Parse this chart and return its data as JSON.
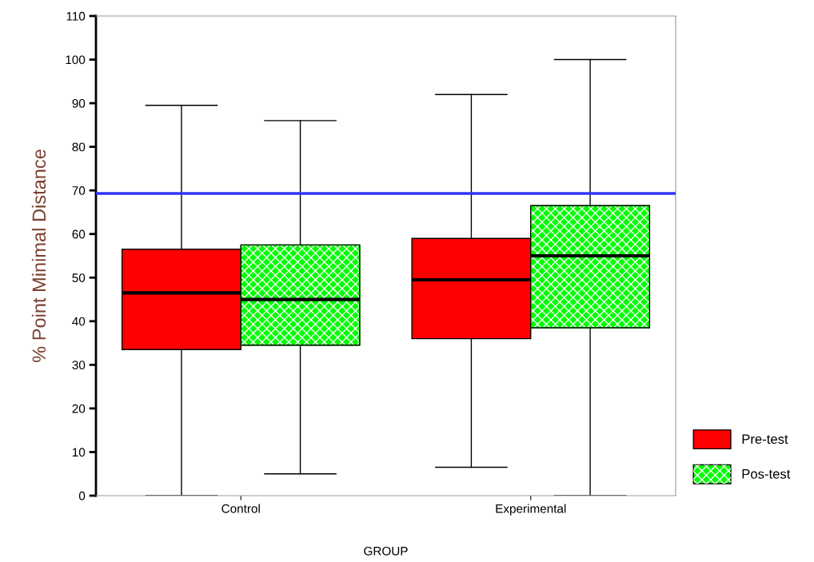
{
  "chart_data": {
    "type": "box",
    "xlabel": "GROUP",
    "ylabel": "% Point Minimal Distance",
    "categories": [
      "Control",
      "Experimental"
    ],
    "series": [
      {
        "name": "Pre-test",
        "color": "#ff0000",
        "boxes": [
          {
            "low": 0,
            "q1": 33.5,
            "median": 46.5,
            "q3": 56.5,
            "high": 89.5
          },
          {
            "low": 6.5,
            "q1": 36,
            "median": 49.5,
            "q3": 59,
            "high": 92
          }
        ]
      },
      {
        "name": "Pos-test",
        "color": "#00ff00",
        "boxes": [
          {
            "low": 5,
            "q1": 34.5,
            "median": 45,
            "q3": 57.5,
            "high": 86
          },
          {
            "low": 0,
            "q1": 38.5,
            "median": 55,
            "q3": 66.5,
            "high": 100
          }
        ]
      }
    ],
    "ylim": [
      0,
      110
    ],
    "yticks": [
      0,
      10,
      20,
      30,
      40,
      50,
      60,
      70,
      80,
      90,
      100,
      110
    ],
    "ref_lines": [
      {
        "axis": "y",
        "value": 69.3,
        "color": "#3333ff"
      }
    ],
    "legend": "bottom right",
    "grid": false
  }
}
